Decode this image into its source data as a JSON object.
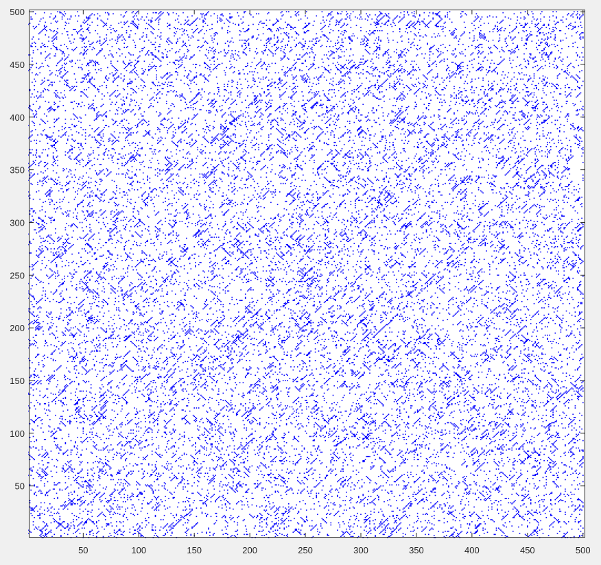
{
  "chart_data": {
    "type": "scatter",
    "title": "",
    "xlabel": "",
    "ylabel": "",
    "xlim": [
      1,
      502
    ],
    "ylim": [
      1,
      502
    ],
    "x_ticks": [
      50,
      100,
      150,
      200,
      250,
      300,
      350,
      400,
      450,
      500
    ],
    "y_ticks": [
      50,
      100,
      150,
      200,
      250,
      300,
      350,
      400,
      450,
      500
    ],
    "grid": false,
    "legend": "none",
    "marker": "dot",
    "marker_color": "#0000ff",
    "series": [
      {
        "pattern": "sparse matrix nonzeros, approx. 12% density, denser along the main diagonal near the center (about 250,250) and along several diagonal bands",
        "points": [
          [
            250,
            252
          ],
          [
            252,
            250
          ],
          [
            248,
            247
          ],
          [
            255,
            256
          ],
          [
            245,
            244
          ],
          [
            260,
            262
          ],
          [
            240,
            238
          ],
          [
            265,
            264
          ],
          [
            235,
            236
          ],
          [
            270,
            271
          ],
          [
            230,
            232
          ],
          [
            275,
            276
          ],
          [
            220,
            222
          ],
          [
            285,
            284
          ],
          [
            210,
            211
          ],
          [
            295,
            296
          ],
          [
            200,
            202
          ],
          [
            305,
            306
          ],
          [
            190,
            191
          ],
          [
            315,
            314
          ],
          [
            180,
            182
          ],
          [
            325,
            326
          ],
          [
            170,
            171
          ],
          [
            335,
            336
          ],
          [
            160,
            162
          ],
          [
            345,
            344
          ],
          [
            150,
            151
          ],
          [
            355,
            356
          ],
          [
            140,
            142
          ],
          [
            365,
            366
          ],
          [
            130,
            131
          ],
          [
            375,
            374
          ],
          [
            120,
            122
          ],
          [
            385,
            386
          ],
          [
            110,
            111
          ],
          [
            395,
            396
          ],
          [
            100,
            102
          ],
          [
            405,
            404
          ],
          [
            90,
            91
          ],
          [
            415,
            416
          ],
          [
            80,
            82
          ],
          [
            425,
            426
          ],
          [
            70,
            71
          ],
          [
            435,
            434
          ],
          [
            60,
            62
          ],
          [
            445,
            446
          ],
          [
            50,
            51
          ],
          [
            455,
            456
          ],
          [
            40,
            42
          ],
          [
            465,
            464
          ],
          [
            30,
            31
          ],
          [
            475,
            476
          ],
          [
            20,
            22
          ],
          [
            485,
            486
          ],
          [
            10,
            11
          ],
          [
            495,
            494
          ],
          [
            125,
            180
          ],
          [
            180,
            125
          ],
          [
            300,
            360
          ],
          [
            360,
            300
          ],
          [
            200,
            320
          ],
          [
            320,
            200
          ],
          [
            150,
            230
          ],
          [
            230,
            150
          ],
          [
            280,
            380
          ],
          [
            380,
            280
          ],
          [
            60,
            120
          ],
          [
            120,
            60
          ],
          [
            400,
            450
          ],
          [
            450,
            400
          ]
        ]
      }
    ],
    "generated_fill": {
      "seed": 7,
      "random_density": 0.055,
      "diagonal_band_density": 0.35,
      "diagonal_bands": [
        0,
        8,
        -8,
        60,
        -60,
        120,
        -120,
        210,
        -210
      ]
    }
  }
}
